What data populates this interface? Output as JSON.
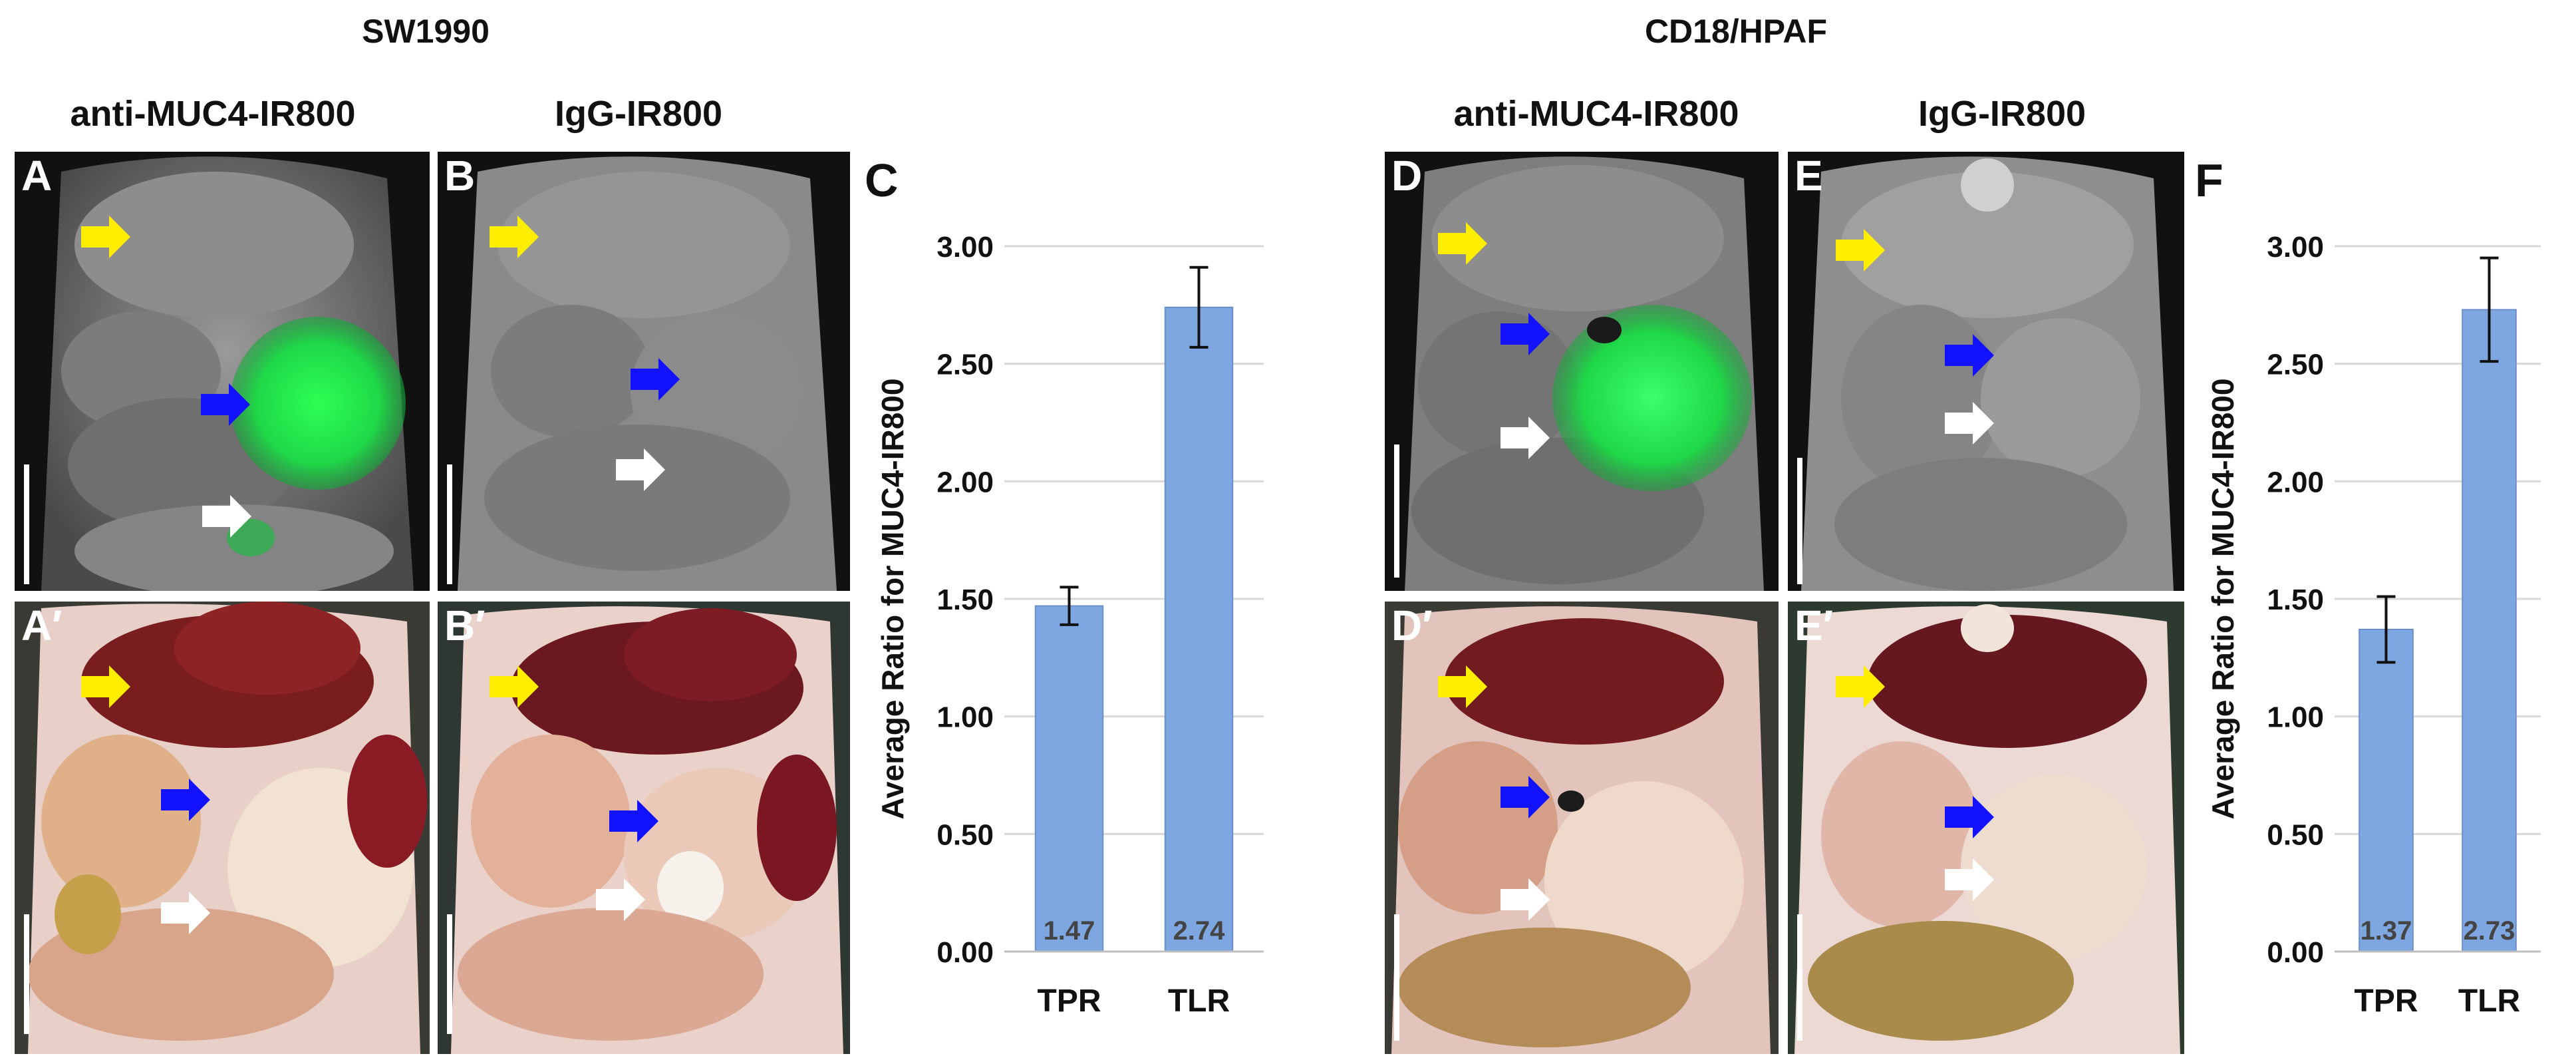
{
  "groups": [
    {
      "title": "SW1990"
    },
    {
      "title": "CD18/HPAF"
    }
  ],
  "columns": [
    {
      "label": "anti-MUC4-IR800"
    },
    {
      "label": "IgG-IR800"
    },
    {
      "label": "anti-MUC4-IR800"
    },
    {
      "label": "IgG-IR800"
    }
  ],
  "panels": {
    "A": "A",
    "A_prime": "A′",
    "B": "B",
    "B_prime": "B′",
    "D": "D",
    "D_prime": "D′",
    "E": "E",
    "E_prime": "E′"
  },
  "arrow_colors": {
    "yellow": "#ffee00",
    "blue": "#1212ff",
    "white": "#ffffff"
  },
  "fluorescence_color": "#22e84a",
  "chart_data": [
    {
      "letter": "C",
      "type": "bar",
      "categories": [
        "TPR",
        "TLR"
      ],
      "values": [
        1.47,
        2.74
      ],
      "value_labels": [
        "1.47",
        "2.74"
      ],
      "error": [
        0.08,
        0.17
      ],
      "ylabel": "Average Ratio for MUC4-IR800",
      "ylim": [
        0,
        3.0
      ],
      "yticks": [
        "0.00",
        "0.50",
        "1.00",
        "1.50",
        "2.00",
        "2.50",
        "3.00"
      ],
      "bar_color": "#7ea6e0",
      "grid": true
    },
    {
      "letter": "F",
      "type": "bar",
      "categories": [
        "TPR",
        "TLR"
      ],
      "values": [
        1.37,
        2.73
      ],
      "value_labels": [
        "1.37",
        "2.73"
      ],
      "error": [
        0.14,
        0.22
      ],
      "ylabel": "Average Ratio for MUC4-IR800",
      "ylim": [
        0,
        3.0
      ],
      "yticks": [
        "0.00",
        "0.50",
        "1.00",
        "1.50",
        "2.00",
        "2.50",
        "3.00"
      ],
      "bar_color": "#7ea6e0",
      "grid": true
    }
  ]
}
